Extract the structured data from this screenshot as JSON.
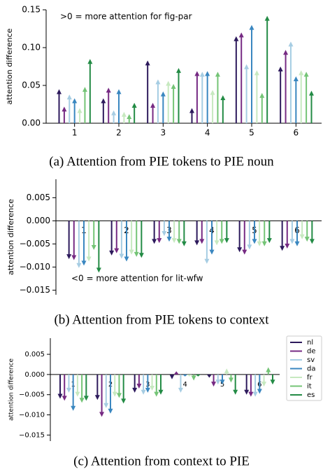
{
  "chart_data": [
    {
      "type": "bar",
      "arrows": true,
      "annotation": ">0 = more attention for fig-par",
      "ylabel": "attention difference",
      "caption": "(a) Attention from PIE tokens to PIE noun",
      "categories": [
        "1",
        "2",
        "3",
        "4",
        "5",
        "6"
      ],
      "ylim": [
        0,
        0.15
      ],
      "yticks": [
        {
          "value": 0,
          "label": "0.00"
        },
        0.05,
        {
          "value": 0.1,
          "label": "0.10"
        },
        0.15
      ],
      "series": [
        {
          "color": "#2d1a5c",
          "values": [
            0.045,
            0.033,
            0.083,
            0.02,
            0.115,
            0.075
          ]
        },
        {
          "color": "#762a83",
          "values": [
            0.022,
            0.047,
            0.027,
            0.069,
            0.12,
            0.097
          ]
        },
        {
          "color": "#a6cde3",
          "values": [
            0.038,
            0.017,
            0.058,
            0.068,
            0.078,
            0.108
          ]
        },
        {
          "color": "#3a87c0",
          "values": [
            0.033,
            0.045,
            0.042,
            0.069,
            0.13,
            0.062
          ]
        },
        {
          "color": "#c7e9c0",
          "values": [
            0.02,
            0.015,
            0.056,
            0.044,
            0.07,
            0.07
          ]
        },
        {
          "color": "#74c476",
          "values": [
            0.048,
            0.012,
            0.052,
            0.068,
            0.04,
            0.068
          ]
        },
        {
          "color": "#238b45",
          "values": [
            0.085,
            0.027,
            0.073,
            0.037,
            0.142,
            0.043
          ]
        }
      ]
    },
    {
      "type": "bar",
      "arrows": true,
      "annotation": "<0 = more attention for lit-wfw",
      "ylabel": "attention difference",
      "caption": "(b) Attention from PIE tokens to context",
      "categories": [
        "1",
        "2",
        "3",
        "4",
        "5",
        "6"
      ],
      "ylim": [
        -0.016,
        0.009
      ],
      "yticks": [
        {
          "value": -0.015,
          "label": "−0.015"
        },
        {
          "value": -0.01,
          "label": "−0.010"
        },
        {
          "value": -0.005,
          "label": "−0.005"
        },
        {
          "value": 0,
          "label": "0.000"
        },
        0.005
      ],
      "series": [
        {
          "color": "#2d1a5c",
          "values": [
            -0.0083,
            -0.0075,
            -0.005,
            -0.0053,
            -0.0068,
            -0.0065
          ]
        },
        {
          "color": "#762a83",
          "values": [
            -0.0085,
            -0.007,
            -0.0048,
            -0.005,
            -0.0073,
            -0.006
          ]
        },
        {
          "color": "#a6cde3",
          "values": [
            -0.0102,
            -0.0082,
            -0.0033,
            -0.0093,
            -0.0062,
            -0.005
          ]
        },
        {
          "color": "#3a87c0",
          "values": [
            -0.0097,
            -0.0088,
            -0.0045,
            -0.0073,
            -0.005,
            -0.0055
          ]
        },
        {
          "color": "#c7e9c0",
          "values": [
            -0.0088,
            -0.0073,
            -0.0048,
            -0.0053,
            -0.0055,
            -0.004
          ]
        },
        {
          "color": "#74c476",
          "values": [
            -0.0063,
            -0.0078,
            -0.005,
            -0.005,
            -0.0055,
            -0.0045
          ]
        },
        {
          "color": "#238b45",
          "values": [
            -0.0112,
            -0.008,
            -0.0055,
            -0.0048,
            -0.0048,
            -0.005
          ]
        }
      ]
    },
    {
      "type": "bar",
      "arrows": true,
      "ylabel": "attention difference",
      "caption": "(c) Attention from context to PIE",
      "categories": [
        "1",
        "2",
        "3",
        "4",
        "5",
        "6"
      ],
      "ylim": [
        -0.0165,
        0.009
      ],
      "yticks": [
        {
          "value": -0.015,
          "label": "−0.015"
        },
        {
          "value": -0.01,
          "label": "−0.010"
        },
        {
          "value": -0.005,
          "label": "−0.005"
        },
        {
          "value": 0,
          "label": "0.000"
        },
        0.005
      ],
      "legend": "right",
      "series": [
        {
          "name": "nl",
          "color": "#2d1a5c",
          "values": [
            -0.006,
            -0.0063,
            -0.0045,
            -0.0012,
            -0.0008,
            -0.005
          ]
        },
        {
          "name": "de",
          "color": "#762a83",
          "values": [
            -0.0065,
            -0.0105,
            -0.0035,
            0.0008,
            -0.003,
            -0.0055
          ]
        },
        {
          "name": "sv",
          "color": "#a6cde3",
          "values": [
            -0.0045,
            -0.0083,
            -0.005,
            -0.0045,
            -0.0025,
            -0.0055
          ]
        },
        {
          "name": "da",
          "color": "#3a87c0",
          "values": [
            -0.009,
            -0.0097,
            -0.0045,
            -0.0005,
            -0.0025,
            -0.0048
          ]
        },
        {
          "name": "fr",
          "color": "#c7e9c0",
          "values": [
            -0.0055,
            -0.0055,
            -0.004,
            -0.0005,
            0.0015,
            -0.003
          ]
        },
        {
          "name": "it",
          "color": "#74c476",
          "values": [
            -0.007,
            -0.0058,
            -0.0055,
            -0.0015,
            -0.002,
            0.0018
          ]
        },
        {
          "name": "es",
          "color": "#238b45",
          "values": [
            -0.0065,
            -0.0072,
            -0.005,
            -0.0005,
            -0.005,
            -0.0025
          ]
        }
      ]
    }
  ]
}
